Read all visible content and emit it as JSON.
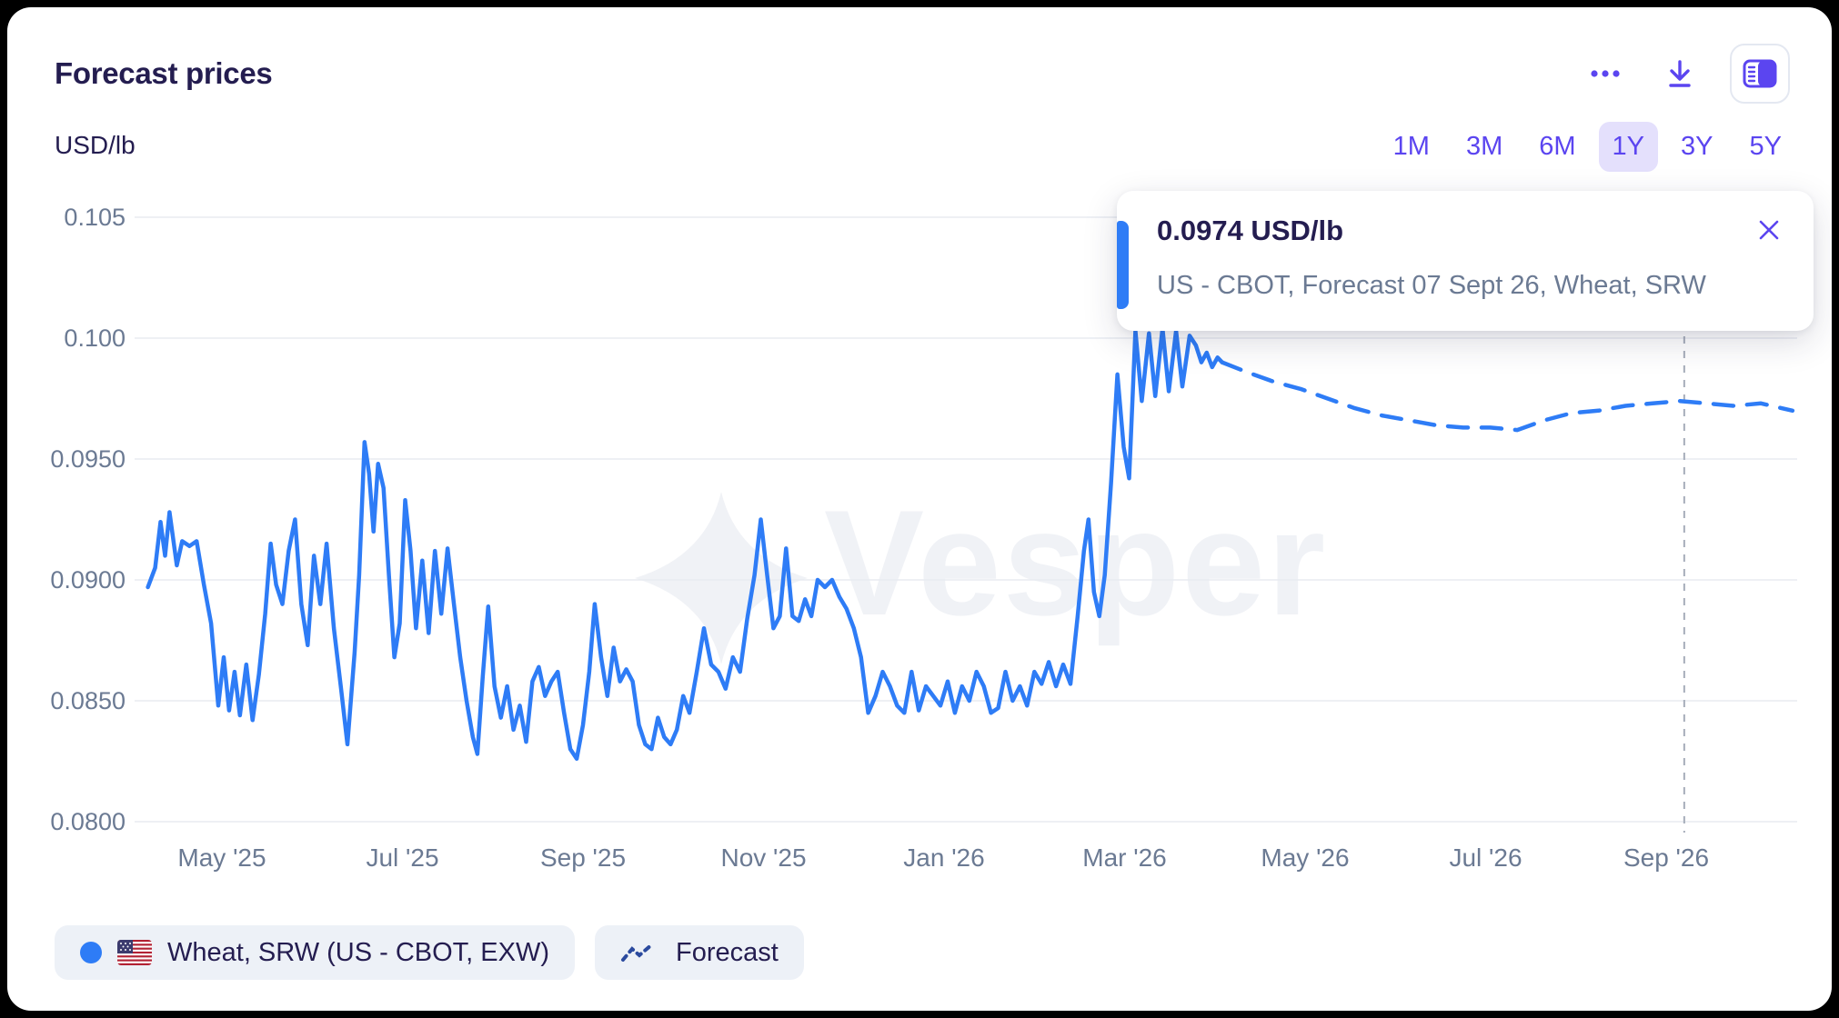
{
  "card": {
    "title": "Forecast prices",
    "unit_label": "USD/lb"
  },
  "toolbar": {
    "range_options": [
      "1M",
      "3M",
      "6M",
      "1Y",
      "3Y",
      "5Y"
    ],
    "selected_range": "1Y"
  },
  "tooltip": {
    "value": "0.0974 USD/lb",
    "description": "US - CBOT, Forecast 07 Sept 26, Wheat, SRW"
  },
  "legend": {
    "series_label": "Wheat, SRW (US - CBOT, EXW)",
    "forecast_label": "Forecast"
  },
  "watermark": "Vesper",
  "colors": {
    "line_blue": "#2e7cf6",
    "accent_indigo": "#5b45f0",
    "selected_range_bg": "#e4e0fc",
    "grid": "#e8ebf1",
    "axis_text": "#6b7a93",
    "navy_text": "#241d50",
    "watermark": "#f0f2f6",
    "marker_line": "#a6adba"
  },
  "chart_data": {
    "type": "line",
    "title": "Forecast prices",
    "ylabel": "USD/lb",
    "ylim": [
      0.0795,
      0.1055
    ],
    "grid": "horizontal",
    "legend_position": "bottom-left",
    "y_ticks": [
      {
        "label": "0.105",
        "v": 0.105
      },
      {
        "label": "0.100",
        "v": 0.1
      },
      {
        "label": "0.0950",
        "v": 0.095
      },
      {
        "label": "0.0900",
        "v": 0.09
      },
      {
        "label": "0.0850",
        "v": 0.085
      },
      {
        "label": "0.0800",
        "v": 0.08
      }
    ],
    "x_ticks": [
      {
        "label": "May '25",
        "t": 0
      },
      {
        "label": "Jul '25",
        "t": 2
      },
      {
        "label": "Sep '25",
        "t": 4
      },
      {
        "label": "Nov '25",
        "t": 6
      },
      {
        "label": "Jan '26",
        "t": 8
      },
      {
        "label": "Mar '26",
        "t": 10
      },
      {
        "label": "May '26",
        "t": 12
      },
      {
        "label": "Jul '26",
        "t": 14
      },
      {
        "label": "Sep '26",
        "t": 16
      }
    ],
    "marker": {
      "t": 16.2,
      "date": "07 Sept 26",
      "value": 0.0974
    },
    "series": [
      {
        "name": "Wheat, SRW (US - CBOT, EXW)",
        "style": "solid",
        "unit": "USD/lb",
        "points": [
          [
            -0.82,
            0.0897
          ],
          [
            -0.74,
            0.0905
          ],
          [
            -0.68,
            0.0924
          ],
          [
            -0.63,
            0.091
          ],
          [
            -0.58,
            0.0928
          ],
          [
            -0.5,
            0.0906
          ],
          [
            -0.44,
            0.0916
          ],
          [
            -0.36,
            0.0914
          ],
          [
            -0.28,
            0.0916
          ],
          [
            -0.2,
            0.0898
          ],
          [
            -0.12,
            0.0882
          ],
          [
            -0.04,
            0.0848
          ],
          [
            0.02,
            0.0868
          ],
          [
            0.08,
            0.0846
          ],
          [
            0.14,
            0.0862
          ],
          [
            0.2,
            0.0844
          ],
          [
            0.27,
            0.0865
          ],
          [
            0.34,
            0.0842
          ],
          [
            0.41,
            0.0861
          ],
          [
            0.48,
            0.0886
          ],
          [
            0.54,
            0.0915
          ],
          [
            0.6,
            0.0898
          ],
          [
            0.67,
            0.089
          ],
          [
            0.74,
            0.0912
          ],
          [
            0.81,
            0.0925
          ],
          [
            0.88,
            0.089
          ],
          [
            0.95,
            0.0873
          ],
          [
            1.02,
            0.091
          ],
          [
            1.09,
            0.089
          ],
          [
            1.16,
            0.0915
          ],
          [
            1.24,
            0.088
          ],
          [
            1.32,
            0.0855
          ],
          [
            1.39,
            0.0832
          ],
          [
            1.47,
            0.087
          ],
          [
            1.52,
            0.0902
          ],
          [
            1.58,
            0.0957
          ],
          [
            1.63,
            0.0944
          ],
          [
            1.68,
            0.092
          ],
          [
            1.73,
            0.0948
          ],
          [
            1.79,
            0.0938
          ],
          [
            1.85,
            0.0902
          ],
          [
            1.91,
            0.0868
          ],
          [
            1.97,
            0.0882
          ],
          [
            2.03,
            0.0933
          ],
          [
            2.09,
            0.0912
          ],
          [
            2.15,
            0.088
          ],
          [
            2.22,
            0.0908
          ],
          [
            2.29,
            0.0878
          ],
          [
            2.36,
            0.0912
          ],
          [
            2.43,
            0.0886
          ],
          [
            2.5,
            0.0913
          ],
          [
            2.57,
            0.089
          ],
          [
            2.64,
            0.0868
          ],
          [
            2.71,
            0.085
          ],
          [
            2.78,
            0.0835
          ],
          [
            2.83,
            0.0828
          ],
          [
            2.89,
            0.086
          ],
          [
            2.95,
            0.0889
          ],
          [
            3.02,
            0.0856
          ],
          [
            3.09,
            0.0843
          ],
          [
            3.16,
            0.0856
          ],
          [
            3.23,
            0.0838
          ],
          [
            3.3,
            0.0848
          ],
          [
            3.37,
            0.0833
          ],
          [
            3.44,
            0.0858
          ],
          [
            3.51,
            0.0864
          ],
          [
            3.58,
            0.0852
          ],
          [
            3.65,
            0.0858
          ],
          [
            3.72,
            0.0862
          ],
          [
            3.79,
            0.0845
          ],
          [
            3.86,
            0.083
          ],
          [
            3.93,
            0.0826
          ],
          [
            4.0,
            0.084
          ],
          [
            4.07,
            0.0862
          ],
          [
            4.13,
            0.089
          ],
          [
            4.2,
            0.0868
          ],
          [
            4.27,
            0.0852
          ],
          [
            4.34,
            0.0872
          ],
          [
            4.41,
            0.0858
          ],
          [
            4.48,
            0.0863
          ],
          [
            4.55,
            0.0858
          ],
          [
            4.62,
            0.084
          ],
          [
            4.69,
            0.0832
          ],
          [
            4.76,
            0.083
          ],
          [
            4.83,
            0.0843
          ],
          [
            4.9,
            0.0835
          ],
          [
            4.97,
            0.0832
          ],
          [
            5.04,
            0.0838
          ],
          [
            5.11,
            0.0852
          ],
          [
            5.18,
            0.0845
          ],
          [
            5.26,
            0.0862
          ],
          [
            5.34,
            0.088
          ],
          [
            5.42,
            0.0865
          ],
          [
            5.5,
            0.0862
          ],
          [
            5.58,
            0.0855
          ],
          [
            5.66,
            0.0868
          ],
          [
            5.74,
            0.0862
          ],
          [
            5.82,
            0.0884
          ],
          [
            5.9,
            0.0902
          ],
          [
            5.97,
            0.0925
          ],
          [
            6.04,
            0.0902
          ],
          [
            6.11,
            0.088
          ],
          [
            6.18,
            0.0885
          ],
          [
            6.25,
            0.0913
          ],
          [
            6.32,
            0.0885
          ],
          [
            6.39,
            0.0883
          ],
          [
            6.46,
            0.0892
          ],
          [
            6.53,
            0.0885
          ],
          [
            6.6,
            0.09
          ],
          [
            6.68,
            0.0897
          ],
          [
            6.76,
            0.09
          ],
          [
            6.84,
            0.0893
          ],
          [
            6.92,
            0.0888
          ],
          [
            7.0,
            0.088
          ],
          [
            7.08,
            0.0868
          ],
          [
            7.16,
            0.0845
          ],
          [
            7.24,
            0.0852
          ],
          [
            7.32,
            0.0862
          ],
          [
            7.4,
            0.0856
          ],
          [
            7.48,
            0.0848
          ],
          [
            7.56,
            0.0845
          ],
          [
            7.64,
            0.0862
          ],
          [
            7.72,
            0.0846
          ],
          [
            7.8,
            0.0856
          ],
          [
            7.88,
            0.0852
          ],
          [
            7.96,
            0.0848
          ],
          [
            8.04,
            0.0858
          ],
          [
            8.12,
            0.0845
          ],
          [
            8.2,
            0.0856
          ],
          [
            8.28,
            0.085
          ],
          [
            8.36,
            0.0862
          ],
          [
            8.44,
            0.0856
          ],
          [
            8.52,
            0.0845
          ],
          [
            8.6,
            0.0847
          ],
          [
            8.68,
            0.0862
          ],
          [
            8.76,
            0.085
          ],
          [
            8.84,
            0.0856
          ],
          [
            8.92,
            0.0848
          ],
          [
            9.0,
            0.0862
          ],
          [
            9.08,
            0.0857
          ],
          [
            9.16,
            0.0866
          ],
          [
            9.24,
            0.0856
          ],
          [
            9.32,
            0.0865
          ],
          [
            9.4,
            0.0857
          ],
          [
            9.48,
            0.0885
          ],
          [
            9.55,
            0.0912
          ],
          [
            9.6,
            0.0925
          ],
          [
            9.66,
            0.0895
          ],
          [
            9.72,
            0.0885
          ],
          [
            9.78,
            0.0902
          ],
          [
            9.85,
            0.094
          ],
          [
            9.92,
            0.0985
          ],
          [
            9.99,
            0.0955
          ],
          [
            10.05,
            0.0942
          ],
          [
            10.12,
            0.1003
          ],
          [
            10.19,
            0.0974
          ],
          [
            10.27,
            0.1002
          ],
          [
            10.34,
            0.0976
          ],
          [
            10.42,
            0.1004
          ],
          [
            10.49,
            0.0978
          ],
          [
            10.57,
            0.1003
          ],
          [
            10.64,
            0.098
          ],
          [
            10.72,
            0.1001
          ],
          [
            10.79,
            0.0997
          ],
          [
            10.85,
            0.099
          ],
          [
            10.91,
            0.0994
          ],
          [
            10.97,
            0.0988
          ],
          [
            11.03,
            0.0992
          ],
          [
            11.08,
            0.099
          ]
        ]
      },
      {
        "name": "Forecast",
        "style": "dashed",
        "unit": "USD/lb",
        "points": [
          [
            11.08,
            0.099
          ],
          [
            11.35,
            0.0986
          ],
          [
            11.65,
            0.0982
          ],
          [
            11.95,
            0.0979
          ],
          [
            12.25,
            0.0975
          ],
          [
            12.55,
            0.0971
          ],
          [
            12.85,
            0.0968
          ],
          [
            13.15,
            0.0966
          ],
          [
            13.45,
            0.0964
          ],
          [
            13.75,
            0.0963
          ],
          [
            14.05,
            0.0963
          ],
          [
            14.35,
            0.0962
          ],
          [
            14.65,
            0.0966
          ],
          [
            14.95,
            0.0969
          ],
          [
            15.25,
            0.097
          ],
          [
            15.55,
            0.0972
          ],
          [
            15.85,
            0.0973
          ],
          [
            16.15,
            0.0974
          ],
          [
            16.45,
            0.0973
          ],
          [
            16.75,
            0.0972
          ],
          [
            17.05,
            0.0973
          ],
          [
            17.4,
            0.097
          ]
        ]
      }
    ]
  }
}
